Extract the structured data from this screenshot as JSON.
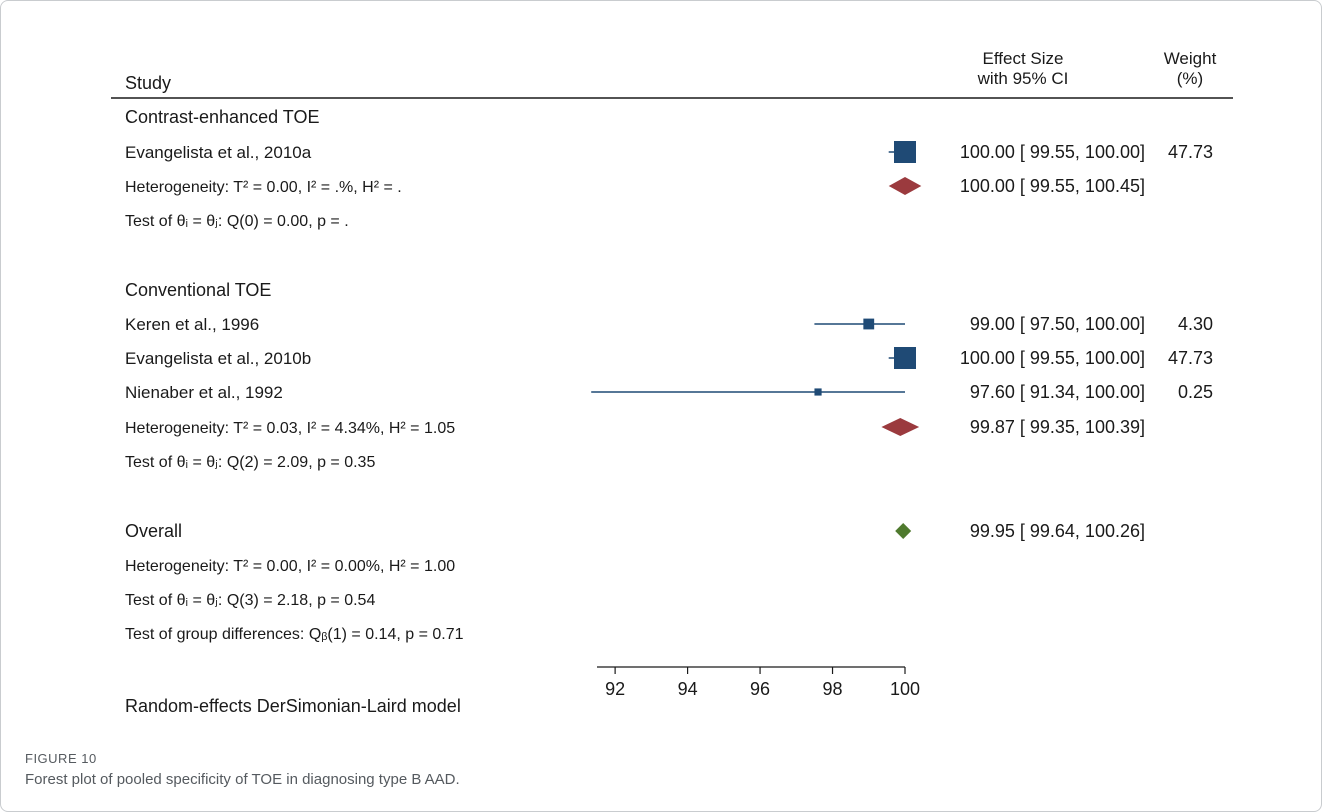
{
  "figure": {
    "label": "FIGURE 10",
    "caption": "Forest plot of pooled specificity of TOE in diagnosing type B AAD."
  },
  "colors": {
    "study_marker": "#1f4a75",
    "subgroup_diamond": "#9b3a3e",
    "overall_diamond": "#4f7a2e",
    "text": "#1a1a1a"
  },
  "chart_data": {
    "type": "forest",
    "headers": {
      "study": "Study",
      "effect": "Effect Size",
      "effect_sub": "with 95% CI",
      "weight": "Weight",
      "weight_sub": "(%)"
    },
    "xlim": [
      91.5,
      100
    ],
    "ticks": [
      92,
      94,
      96,
      98,
      100
    ],
    "model_note": "Random-effects DerSimonian-Laird model",
    "rows": [
      {
        "kind": "group",
        "label": "Contrast-enhanced TOE"
      },
      {
        "kind": "study",
        "label": "Evangelista et al., 2010a",
        "es": 100.0,
        "lo": 99.55,
        "hi": 100.0,
        "weight": 47.73,
        "text": "100.00 [  99.55,  100.00]",
        "weight_text": "47.73"
      },
      {
        "kind": "diamond",
        "label": "Heterogeneity: T² = 0.00, I² = .%, H² = .",
        "es": 100.0,
        "lo": 99.55,
        "hi": 100.45,
        "color": "subgroup",
        "text": "100.00 [  99.55,  100.45]"
      },
      {
        "kind": "note",
        "label": "Test of θᵢ = θⱼ:  Q(0) =  0.00,  p = ."
      },
      {
        "kind": "spacer"
      },
      {
        "kind": "group",
        "label": "Conventional TOE"
      },
      {
        "kind": "study",
        "label": "Keren et al., 1996",
        "es": 99.0,
        "lo": 97.5,
        "hi": 100.0,
        "weight": 4.3,
        "text": "99.00 [  97.50,  100.00]",
        "weight_text": "4.30"
      },
      {
        "kind": "study",
        "label": "Evangelista et al., 2010b",
        "es": 100.0,
        "lo": 99.55,
        "hi": 100.0,
        "weight": 47.73,
        "text": "100.00 [  99.55,  100.00]",
        "weight_text": "47.73"
      },
      {
        "kind": "study",
        "label": "Nienaber et al., 1992",
        "es": 97.6,
        "lo": 91.34,
        "hi": 100.0,
        "weight": 0.25,
        "text": "97.60 [  91.34,  100.00]",
        "weight_text": "0.25"
      },
      {
        "kind": "diamond",
        "label": "Heterogeneity: T² = 0.03, I² = 4.34%, H² = 1.05",
        "es": 99.87,
        "lo": 99.35,
        "hi": 100.39,
        "color": "subgroup",
        "text": "99.87 [  99.35,  100.39]"
      },
      {
        "kind": "note",
        "label": "Test of θᵢ = θⱼ: Q(2) = 2.09, p = 0.35"
      },
      {
        "kind": "spacer"
      },
      {
        "kind": "overall",
        "label": "Overall",
        "es": 99.95,
        "lo": 99.64,
        "hi": 100.26,
        "color": "overall",
        "text": "99.95 [  99.64,  100.26]"
      },
      {
        "kind": "note",
        "label": "Heterogeneity: T² = 0.00, I² = 0.00%, H² = 1.00"
      },
      {
        "kind": "note",
        "label": "Test of θᵢ = θⱼ:  Q(3) = 2.18, p = 0.54"
      },
      {
        "kind": "note",
        "label": "Test of group differences: Qᵦ(1) = 0.14, p = 0.71"
      }
    ]
  }
}
